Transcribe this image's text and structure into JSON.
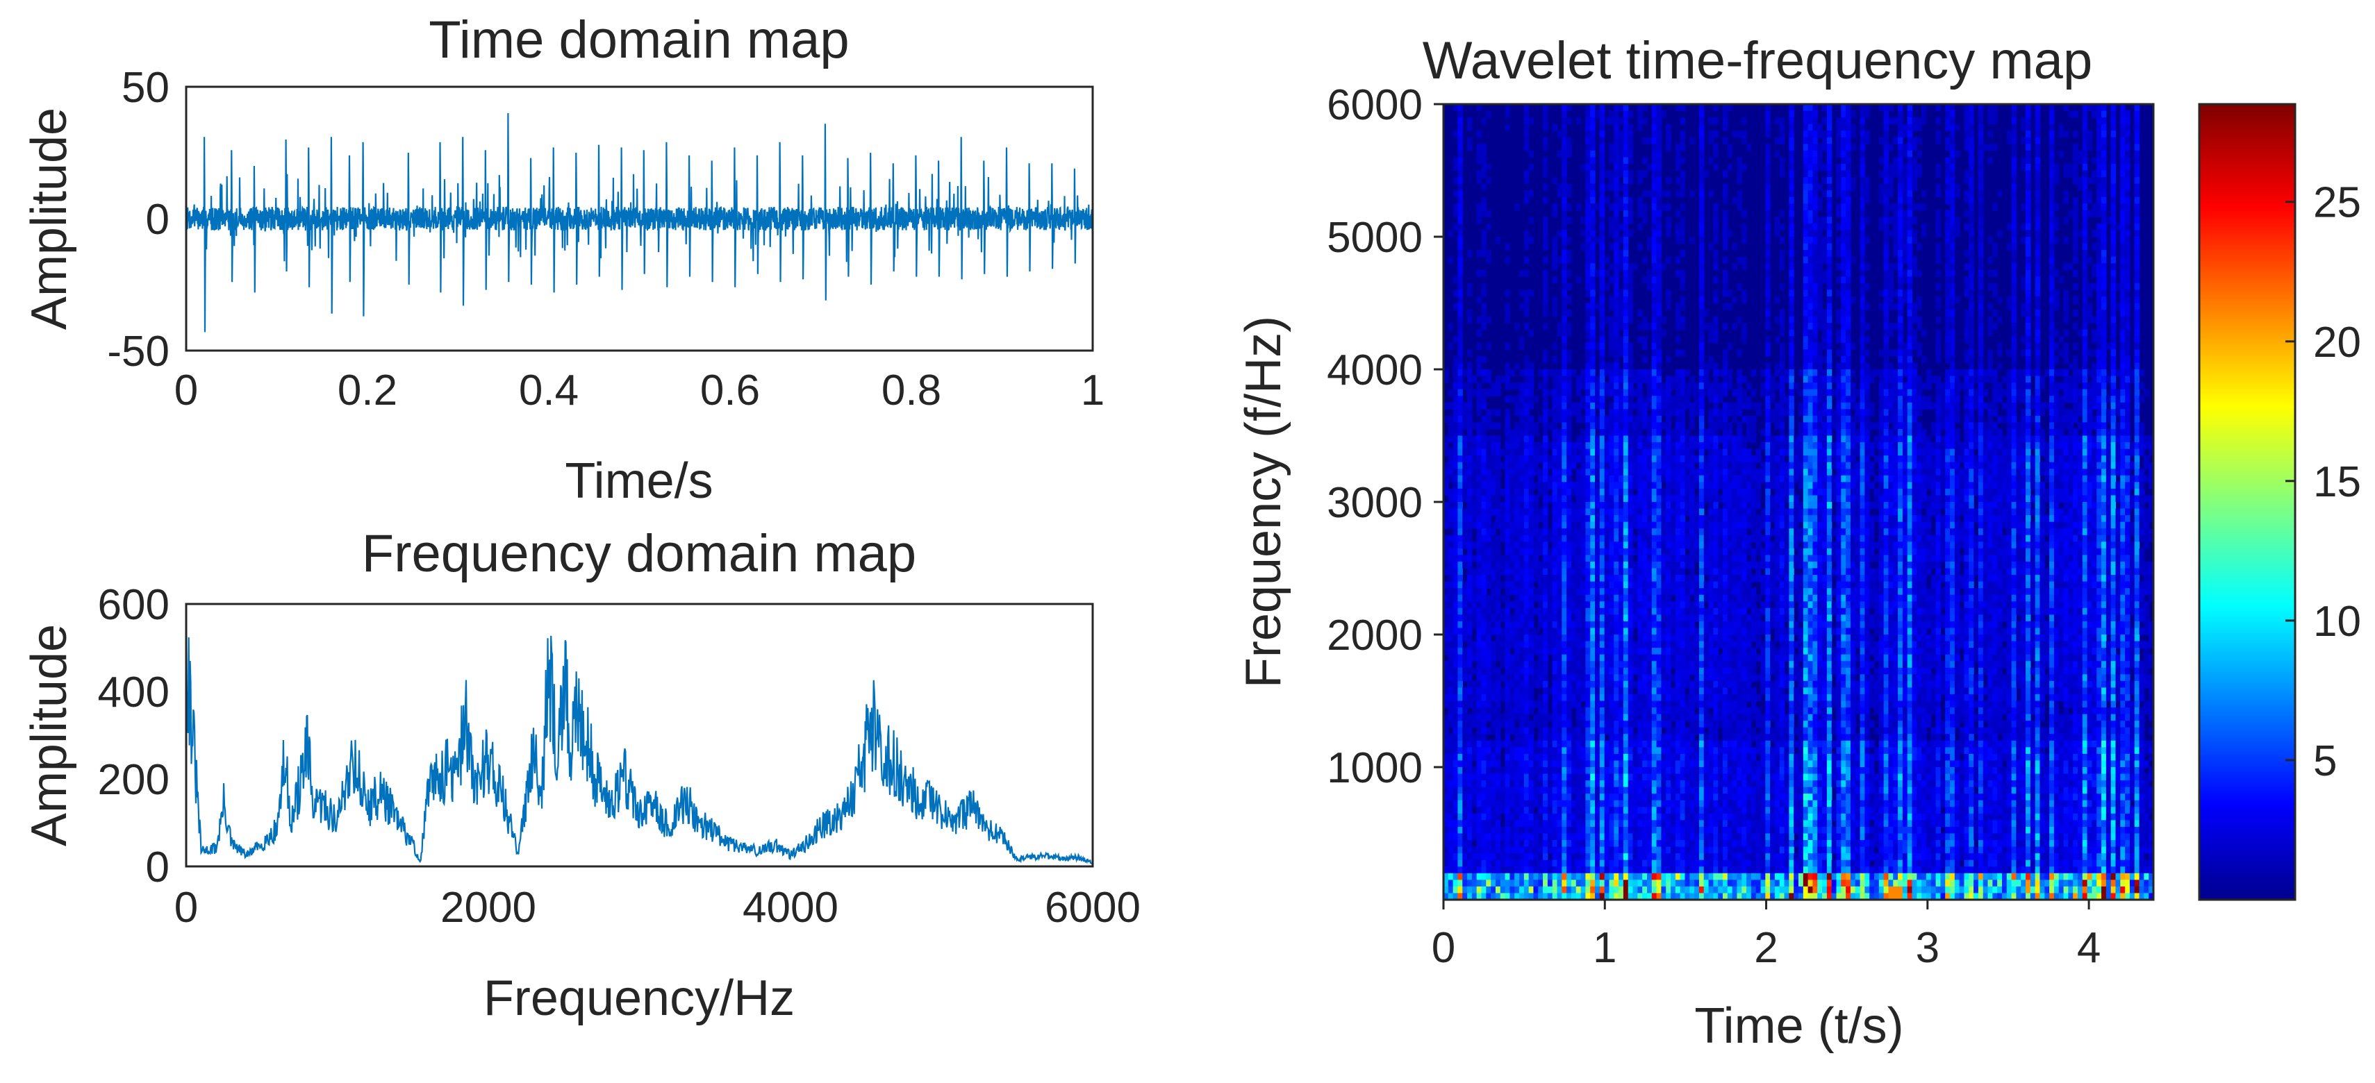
{
  "chart_data": [
    {
      "type": "line",
      "title": "Time domain map",
      "xlabel": "Time/s",
      "ylabel": "Amplitude",
      "xlim": [
        0,
        1
      ],
      "ylim": [
        -50,
        50
      ],
      "x_ticks": [
        "0",
        "0.2",
        "0.4",
        "0.6",
        "0.8",
        "1"
      ],
      "y_ticks": [
        "-50",
        "0",
        "50"
      ],
      "grid": false,
      "color": "#0072BD",
      "series": [
        {
          "x": [
            0.02,
            0.05,
            0.075,
            0.11,
            0.135,
            0.16,
            0.18,
            0.195,
            0.245,
            0.28,
            0.305,
            0.33,
            0.355,
            0.38,
            0.405,
            0.43,
            0.455,
            0.48,
            0.505,
            0.53,
            0.555,
            0.58,
            0.605,
            0.63,
            0.655,
            0.68,
            0.705,
            0.73,
            0.755,
            0.78,
            0.805,
            0.83,
            0.855,
            0.88,
            0.905,
            0.93,
            0.955,
            0.98
          ],
          "y_peak": [
            31,
            26,
            20,
            30,
            27,
            31,
            24,
            29,
            25,
            29,
            31,
            26,
            40,
            23,
            27,
            25,
            28,
            27,
            26,
            29,
            24,
            22,
            27,
            24,
            29,
            24,
            36,
            23,
            25,
            21,
            24,
            22,
            31,
            22,
            27,
            21,
            21,
            19
          ],
          "y_trough": [
            -43,
            -24,
            -28,
            -20,
            -26,
            -36,
            -24,
            -37,
            -25,
            -28,
            -33,
            -27,
            -24,
            -25,
            -28,
            -25,
            -22,
            -27,
            -21,
            -26,
            -22,
            -24,
            -26,
            -21,
            -24,
            -23,
            -31,
            -22,
            -25,
            -20,
            -22,
            -22,
            -23,
            -21,
            -22,
            -20,
            -19,
            -17
          ]
        }
      ]
    },
    {
      "type": "line",
      "title": "Frequency domain map",
      "xlabel": "Frequency/Hz",
      "ylabel": "Amplitude",
      "xlim": [
        0,
        6000
      ],
      "ylim": [
        0,
        600
      ],
      "x_ticks": [
        "0",
        "2000",
        "4000",
        "6000"
      ],
      "y_ticks": [
        "0",
        "200",
        "400",
        "600"
      ],
      "grid": false,
      "color": "#0072BD",
      "series": [
        {
          "x": [
            0,
            100,
            200,
            250,
            300,
            400,
            500,
            600,
            650,
            700,
            800,
            850,
            900,
            1000,
            1100,
            1200,
            1300,
            1400,
            1500,
            1550,
            1600,
            1700,
            1800,
            1850,
            1900,
            2000,
            2100,
            2200,
            2300,
            2350,
            2400,
            2450,
            2500,
            2550,
            2600,
            2700,
            2800,
            2900,
            3000,
            3100,
            3200,
            3300,
            3400,
            3500,
            3600,
            3700,
            3800,
            3900,
            4000,
            4100,
            4200,
            4300,
            4400,
            4500,
            4550,
            4600,
            4700,
            4800,
            4900,
            5000,
            5100,
            5200,
            5300,
            5400,
            5500,
            5600,
            5700,
            5800,
            5900,
            6000
          ],
          "y": [
            600,
            40,
            50,
            170,
            60,
            30,
            60,
            100,
            280,
            120,
            310,
            150,
            170,
            120,
            300,
            160,
            200,
            120,
            60,
            10,
            200,
            260,
            240,
            430,
            210,
            300,
            180,
            30,
            350,
            200,
            520,
            330,
            500,
            300,
            450,
            250,
            170,
            250,
            140,
            160,
            100,
            180,
            120,
            90,
            60,
            50,
            40,
            60,
            30,
            60,
            110,
            130,
            180,
            320,
            400,
            330,
            260,
            200,
            180,
            140,
            120,
            160,
            100,
            80,
            20,
            25,
            30,
            20,
            25,
            10
          ]
        }
      ]
    },
    {
      "type": "heatmap",
      "title": "Wavelet time-frequency map",
      "xlabel": "Time (t/s)",
      "ylabel": "Frequency (f/Hz)",
      "xlim": [
        0,
        4.4
      ],
      "ylim": [
        0,
        6000
      ],
      "x_ticks": [
        "0",
        "1",
        "2",
        "3",
        "4"
      ],
      "y_ticks": [
        "1000",
        "2000",
        "3000",
        "4000",
        "5000",
        "6000"
      ],
      "colormap": "jet",
      "colorbar_range": [
        0,
        28.5
      ],
      "colorbar_ticks": [
        "5",
        "10",
        "15",
        "20",
        "25"
      ],
      "description_values": {
        "band_0_200_hz_level": 9,
        "band_200_1200_hz_level": 3,
        "band_1500_3500_hz_level": 2.5,
        "band_above_4000_hz_level": 1.2,
        "hotspot_time_s": 2.8,
        "hotspot_value": 21
      }
    }
  ]
}
